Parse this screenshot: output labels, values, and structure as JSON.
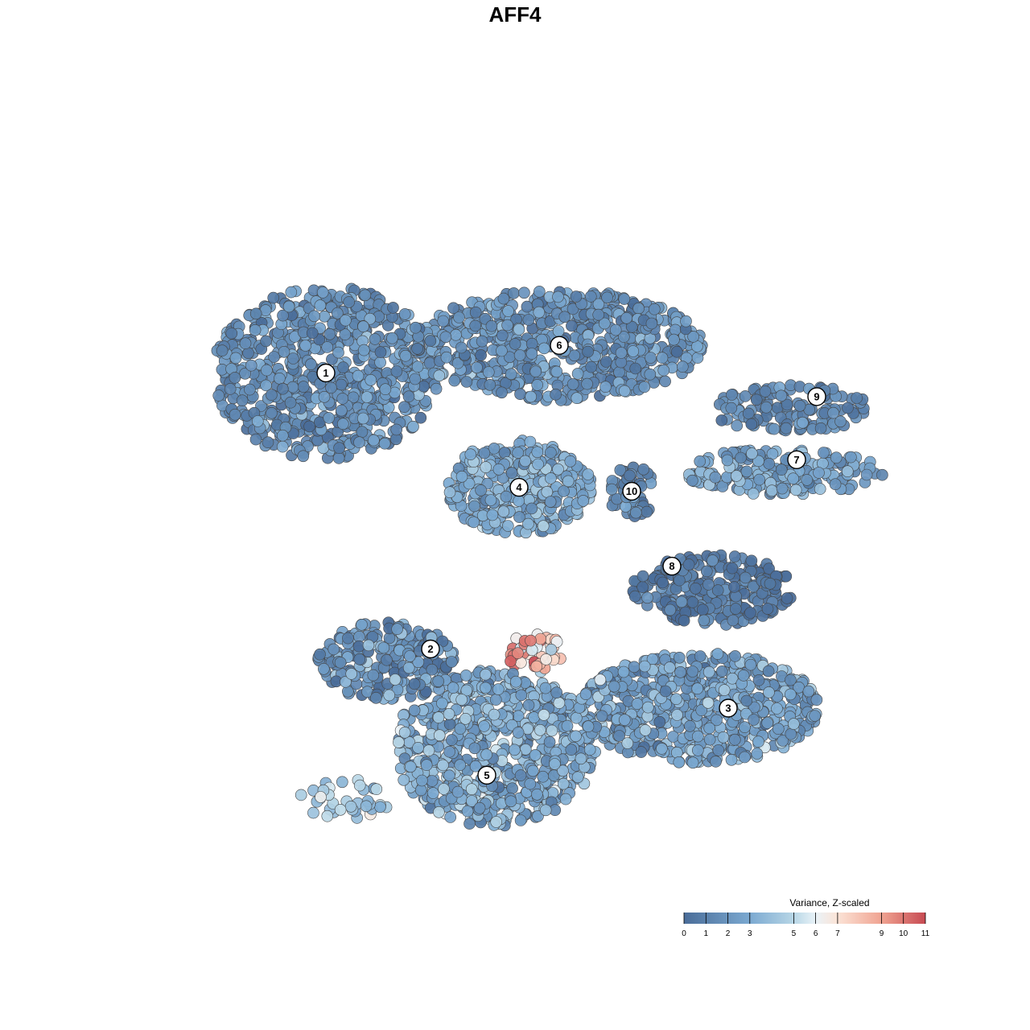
{
  "chart_data": {
    "type": "scatter",
    "title": "AFF4",
    "xlabel": "",
    "ylabel": "",
    "grid": false,
    "axes_visible": false,
    "legend": {
      "title": "Variance, Z-scaled",
      "position": "bottom-right",
      "ticks": [
        "0",
        "1",
        "2",
        "3",
        "5",
        "6",
        "7",
        "9",
        "10",
        "11"
      ],
      "tick_values": [
        0,
        1,
        2,
        3,
        5,
        6,
        7,
        9,
        10,
        11
      ],
      "range": [
        0,
        11
      ]
    },
    "color_scale": {
      "domain": [
        0,
        3,
        5,
        6,
        7,
        9,
        11
      ],
      "colors": [
        "#4a6d99",
        "#7ba9d1",
        "#b7d6e6",
        "#eaf3f8",
        "#fbe3d6",
        "#f0a391",
        "#c74a52"
      ]
    },
    "clusters": [
      {
        "label": "1",
        "cx": -0.52,
        "cy": 0.35,
        "rx": 0.28,
        "ry": 0.22,
        "n": 700,
        "mean": 1.7,
        "sd": 0.9
      },
      {
        "label": "6",
        "cx": 0.06,
        "cy": 0.42,
        "rx": 0.36,
        "ry": 0.14,
        "n": 650,
        "mean": 1.8,
        "sd": 0.9
      },
      {
        "label": "4",
        "cx": -0.04,
        "cy": 0.06,
        "rx": 0.18,
        "ry": 0.12,
        "n": 340,
        "mean": 2.9,
        "sd": 0.9
      },
      {
        "label": "10",
        "cx": 0.24,
        "cy": 0.05,
        "rx": 0.06,
        "ry": 0.07,
        "n": 55,
        "mean": 1.2,
        "sd": 0.7
      },
      {
        "label": "9",
        "cx": 0.63,
        "cy": 0.26,
        "rx": 0.2,
        "ry": 0.06,
        "n": 130,
        "mean": 1.2,
        "sd": 0.8
      },
      {
        "label": "7",
        "cx": 0.62,
        "cy": 0.1,
        "rx": 0.25,
        "ry": 0.06,
        "n": 200,
        "mean": 2.6,
        "sd": 1.0
      },
      {
        "label": "8",
        "cx": 0.44,
        "cy": -0.2,
        "rx": 0.2,
        "ry": 0.09,
        "n": 250,
        "mean": 0.6,
        "sd": 0.7
      },
      {
        "label": "2",
        "cx": -0.37,
        "cy": -0.38,
        "rx": 0.17,
        "ry": 0.1,
        "n": 230,
        "mean": 1.9,
        "sd": 1.3
      },
      {
        "label": "3",
        "cx": 0.41,
        "cy": -0.5,
        "rx": 0.3,
        "ry": 0.14,
        "n": 600,
        "mean": 2.6,
        "sd": 1.1
      },
      {
        "label": "5",
        "cx": -0.1,
        "cy": -0.6,
        "rx": 0.25,
        "ry": 0.2,
        "n": 700,
        "mean": 3.1,
        "sd": 1.1
      },
      {
        "label": "",
        "cx": 0.0,
        "cy": -0.36,
        "rx": 0.07,
        "ry": 0.05,
        "n": 40,
        "mean": 8.2,
        "sd": 1.4
      },
      {
        "label": "",
        "cx": -0.47,
        "cy": -0.73,
        "rx": 0.12,
        "ry": 0.05,
        "n": 35,
        "mean": 4.2,
        "sd": 0.8
      }
    ],
    "cluster_labels": [
      {
        "label": "1",
        "x": -0.52,
        "y": 0.35
      },
      {
        "label": "6",
        "x": 0.06,
        "y": 0.42
      },
      {
        "label": "4",
        "x": -0.04,
        "y": 0.06
      },
      {
        "label": "10",
        "x": 0.24,
        "y": 0.05
      },
      {
        "label": "9",
        "x": 0.7,
        "y": 0.29
      },
      {
        "label": "7",
        "x": 0.65,
        "y": 0.13
      },
      {
        "label": "8",
        "x": 0.34,
        "y": -0.14
      },
      {
        "label": "2",
        "x": -0.26,
        "y": -0.35
      },
      {
        "label": "3",
        "x": 0.48,
        "y": -0.5
      },
      {
        "label": "5",
        "x": -0.12,
        "y": -0.67
      }
    ]
  }
}
